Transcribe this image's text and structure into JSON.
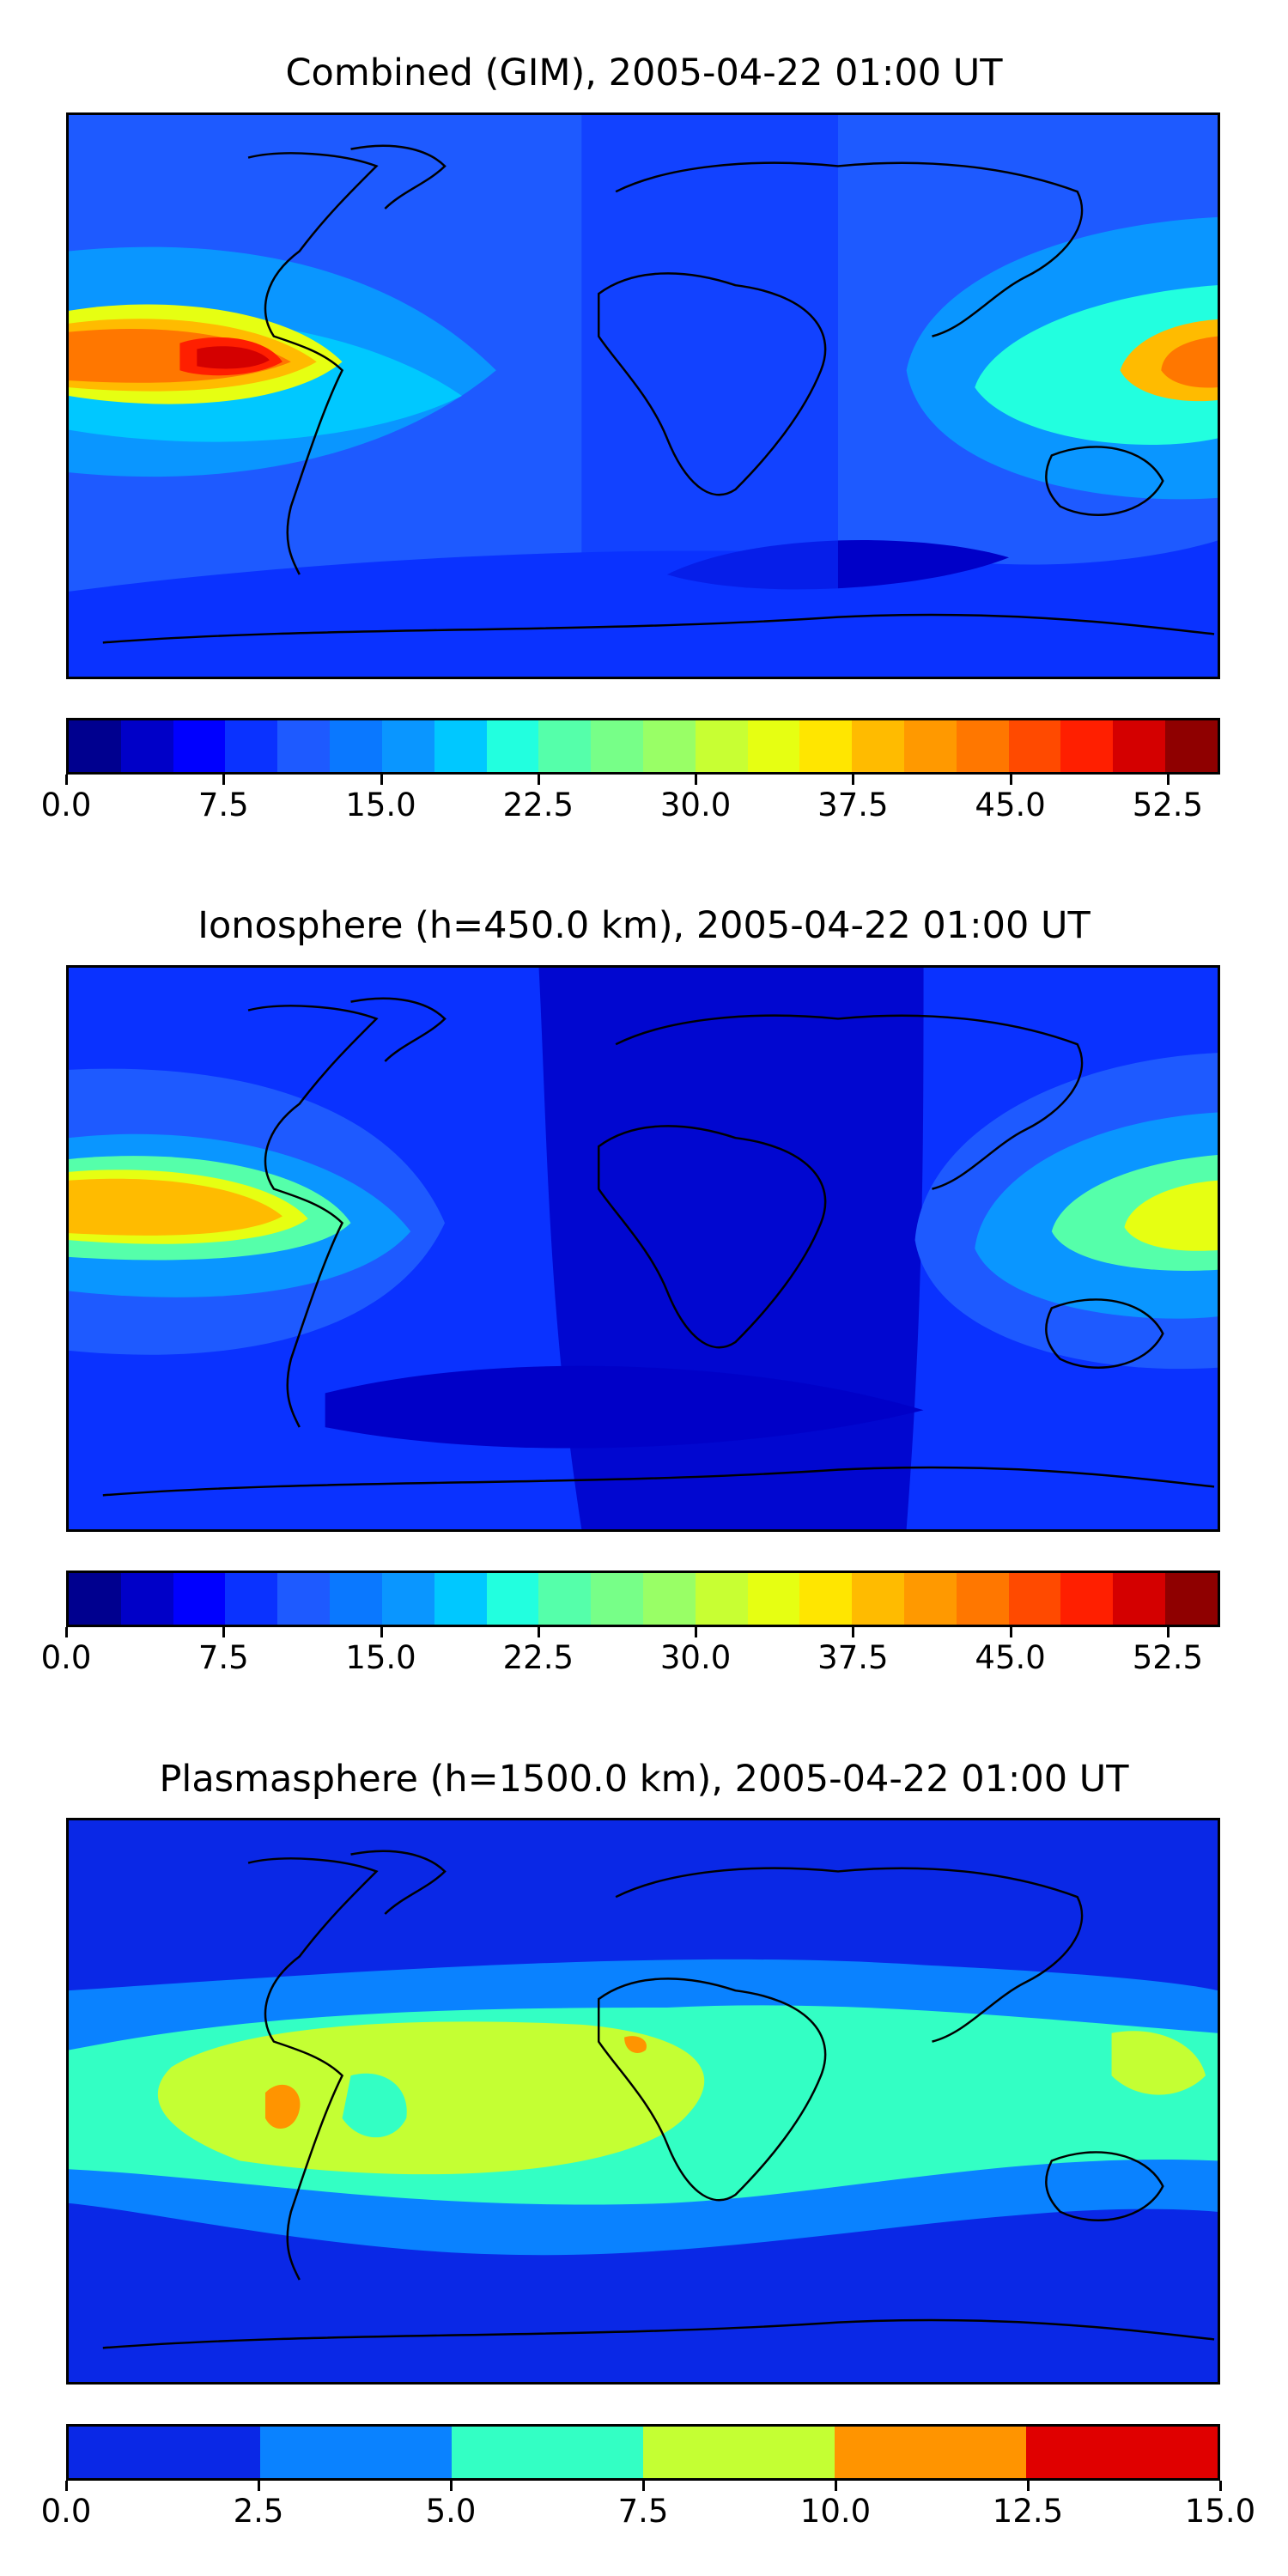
{
  "panels": [
    {
      "title": "Combined (GIM), 2005-04-22 01:00 UT",
      "colorbar": {
        "min": 0,
        "max": 55.0,
        "ticks": [
          "0.0",
          "7.5",
          "15.0",
          "22.5",
          "30.0",
          "37.5",
          "45.0",
          "52.5"
        ],
        "tick_values": [
          0,
          7.5,
          15,
          22.5,
          30,
          37.5,
          45,
          52.5
        ],
        "colors": [
          "#00008f",
          "#0000c8",
          "#0000ff",
          "#0a32ff",
          "#1e5aff",
          "#0a78ff",
          "#0a96ff",
          "#00c8ff",
          "#22ffdf",
          "#55ffaa",
          "#77ff88",
          "#99ff66",
          "#c8ff33",
          "#e6ff12",
          "#ffe600",
          "#ffbb00",
          "#ff9900",
          "#ff7700",
          "#ff4a00",
          "#ff1f00",
          "#d40000",
          "#8f0000"
        ]
      }
    },
    {
      "title": "Ionosphere  (h=450.0 km), 2005-04-22 01:00 UT",
      "colorbar": {
        "min": 0,
        "max": 55.0,
        "ticks": [
          "0.0",
          "7.5",
          "15.0",
          "22.5",
          "30.0",
          "37.5",
          "45.0",
          "52.5"
        ],
        "tick_values": [
          0,
          7.5,
          15,
          22.5,
          30,
          37.5,
          45,
          52.5
        ],
        "colors": [
          "#00008f",
          "#0000c8",
          "#0000ff",
          "#0a32ff",
          "#1e5aff",
          "#0a78ff",
          "#0a96ff",
          "#00c8ff",
          "#22ffdf",
          "#55ffaa",
          "#77ff88",
          "#99ff66",
          "#c8ff33",
          "#e6ff12",
          "#ffe600",
          "#ffbb00",
          "#ff9900",
          "#ff7700",
          "#ff4a00",
          "#ff1f00",
          "#d40000",
          "#8f0000"
        ]
      }
    },
    {
      "title": "Plasmasphere (h=1500.0 km), 2005-04-22 01:00 UT",
      "colorbar": {
        "min": 0,
        "max": 15.0,
        "ticks": [
          "0.0",
          "2.5",
          "5.0",
          "7.5",
          "10.0",
          "12.5",
          "15.0"
        ],
        "tick_values": [
          0,
          2.5,
          5,
          7.5,
          10,
          12.5,
          15
        ],
        "colors": [
          "#0a28e6",
          "#0a82ff",
          "#33ffc4",
          "#c4ff33",
          "#ff9400",
          "#e00000"
        ]
      }
    }
  ]
}
